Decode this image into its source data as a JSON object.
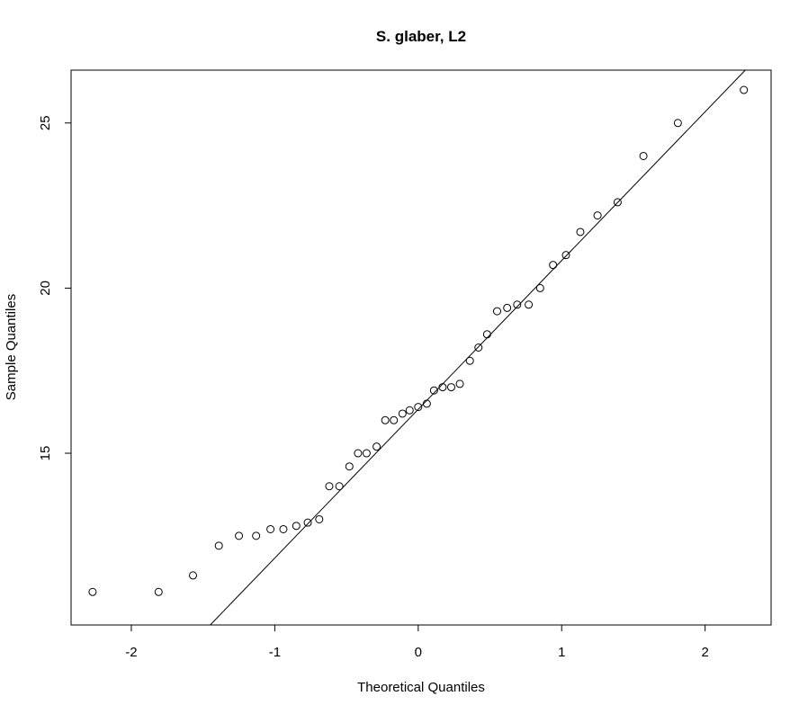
{
  "chart_data": {
    "type": "scatter",
    "title": "S. glaber, L2",
    "xlabel": "Theoretical Quantiles",
    "ylabel": "Sample Quantiles",
    "xlim": [
      -2.42,
      2.46
    ],
    "ylim": [
      9.8,
      26.6
    ],
    "x_ticks": [
      -2,
      -1,
      0,
      1,
      2
    ],
    "x_tick_labels": [
      "-2",
      "-1",
      "0",
      "1",
      "2"
    ],
    "y_ticks": [
      15,
      20,
      25
    ],
    "y_tick_labels": [
      "15",
      "20",
      "25"
    ],
    "grid": false,
    "legend": "none",
    "points": [
      {
        "x": -2.27,
        "y": 10.8
      },
      {
        "x": -1.81,
        "y": 10.8
      },
      {
        "x": -1.57,
        "y": 11.3
      },
      {
        "x": -1.39,
        "y": 12.2
      },
      {
        "x": -1.25,
        "y": 12.5
      },
      {
        "x": -1.13,
        "y": 12.5
      },
      {
        "x": -1.03,
        "y": 12.7
      },
      {
        "x": -0.94,
        "y": 12.7
      },
      {
        "x": -0.85,
        "y": 12.8
      },
      {
        "x": -0.77,
        "y": 12.9
      },
      {
        "x": -0.69,
        "y": 13.0
      },
      {
        "x": -0.62,
        "y": 14.0
      },
      {
        "x": -0.55,
        "y": 14.0
      },
      {
        "x": -0.48,
        "y": 14.6
      },
      {
        "x": -0.42,
        "y": 15.0
      },
      {
        "x": -0.36,
        "y": 15.0
      },
      {
        "x": -0.29,
        "y": 15.2
      },
      {
        "x": -0.23,
        "y": 16.0
      },
      {
        "x": -0.17,
        "y": 16.0
      },
      {
        "x": -0.11,
        "y": 16.2
      },
      {
        "x": -0.06,
        "y": 16.3
      },
      {
        "x": 0.0,
        "y": 16.4
      },
      {
        "x": 0.06,
        "y": 16.5
      },
      {
        "x": 0.11,
        "y": 16.9
      },
      {
        "x": 0.17,
        "y": 17.0
      },
      {
        "x": 0.23,
        "y": 17.0
      },
      {
        "x": 0.29,
        "y": 17.1
      },
      {
        "x": 0.36,
        "y": 17.8
      },
      {
        "x": 0.42,
        "y": 18.2
      },
      {
        "x": 0.48,
        "y": 18.6
      },
      {
        "x": 0.55,
        "y": 19.3
      },
      {
        "x": 0.62,
        "y": 19.4
      },
      {
        "x": 0.69,
        "y": 19.5
      },
      {
        "x": 0.77,
        "y": 19.5
      },
      {
        "x": 0.85,
        "y": 20.0
      },
      {
        "x": 0.94,
        "y": 20.7
      },
      {
        "x": 1.03,
        "y": 21.0
      },
      {
        "x": 1.13,
        "y": 21.7
      },
      {
        "x": 1.25,
        "y": 22.2
      },
      {
        "x": 1.39,
        "y": 22.6
      },
      {
        "x": 1.57,
        "y": 24.0
      },
      {
        "x": 1.81,
        "y": 25.0
      },
      {
        "x": 2.27,
        "y": 26.0
      }
    ],
    "reference_line": {
      "x": [
        -1.45,
        2.28
      ],
      "y": [
        9.8,
        26.6
      ]
    }
  }
}
